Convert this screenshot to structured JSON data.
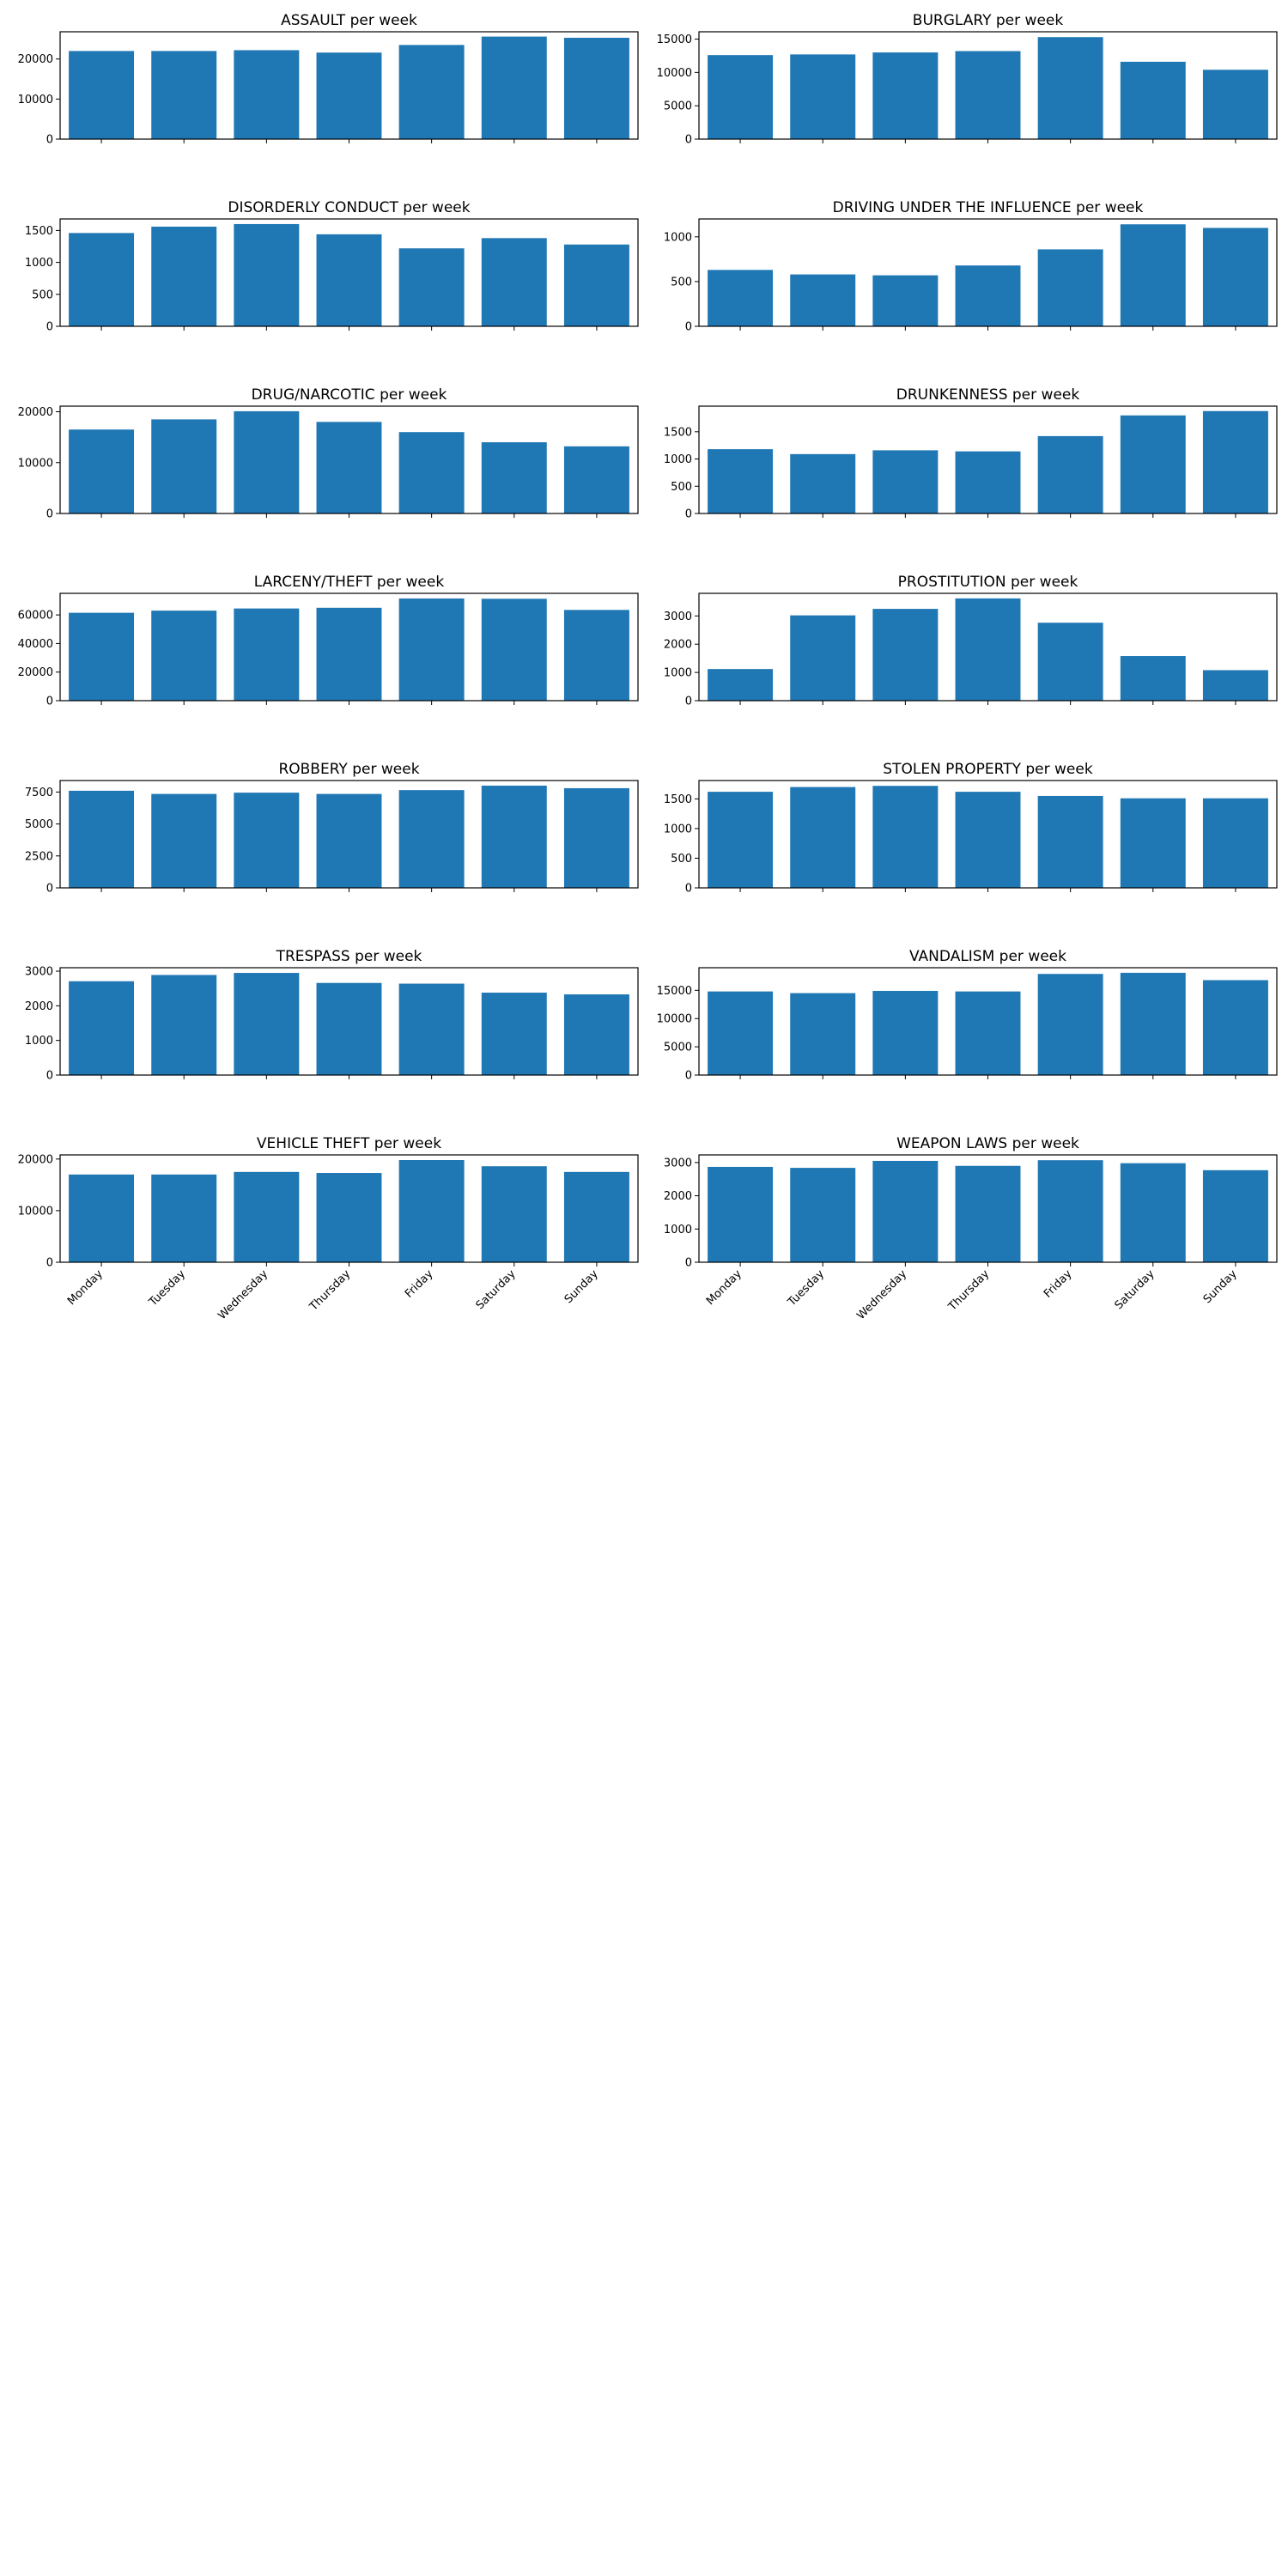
{
  "chart_data": [
    {
      "type": "bar",
      "title": "ASSAULT per week",
      "categories": [
        "Monday",
        "Tuesday",
        "Wednesday",
        "Thursday",
        "Friday",
        "Saturday",
        "Sunday"
      ],
      "values": [
        22000,
        22000,
        22200,
        21600,
        23500,
        25600,
        25300
      ],
      "ylim": [
        0,
        26800
      ],
      "yticks": [
        0,
        10000,
        20000
      ],
      "show_xticklabels": false
    },
    {
      "type": "bar",
      "title": "BURGLARY per week",
      "categories": [
        "Monday",
        "Tuesday",
        "Wednesday",
        "Thursday",
        "Friday",
        "Saturday",
        "Sunday"
      ],
      "values": [
        12600,
        12700,
        13000,
        13200,
        15300,
        11600,
        10400
      ],
      "ylim": [
        0,
        16100
      ],
      "yticks": [
        0,
        5000,
        10000,
        15000
      ],
      "show_xticklabels": false
    },
    {
      "type": "bar",
      "title": "DISORDERLY CONDUCT per week",
      "categories": [
        "Monday",
        "Tuesday",
        "Wednesday",
        "Thursday",
        "Friday",
        "Saturday",
        "Sunday"
      ],
      "values": [
        1460,
        1560,
        1600,
        1440,
        1220,
        1380,
        1280
      ],
      "ylim": [
        0,
        1680
      ],
      "yticks": [
        0,
        500,
        1000,
        1500
      ],
      "show_xticklabels": false
    },
    {
      "type": "bar",
      "title": "DRIVING UNDER THE INFLUENCE per week",
      "categories": [
        "Monday",
        "Tuesday",
        "Wednesday",
        "Thursday",
        "Friday",
        "Saturday",
        "Sunday"
      ],
      "values": [
        630,
        580,
        570,
        680,
        860,
        1140,
        1100
      ],
      "ylim": [
        0,
        1200
      ],
      "yticks": [
        0,
        500,
        1000
      ],
      "show_xticklabels": false
    },
    {
      "type": "bar",
      "title": "DRUG/NARCOTIC per week",
      "categories": [
        "Monday",
        "Tuesday",
        "Wednesday",
        "Thursday",
        "Friday",
        "Saturday",
        "Sunday"
      ],
      "values": [
        16500,
        18500,
        20100,
        18000,
        16000,
        14000,
        13200
      ],
      "ylim": [
        0,
        21100
      ],
      "yticks": [
        0,
        10000,
        20000
      ],
      "show_xticklabels": false
    },
    {
      "type": "bar",
      "title": "DRUNKENNESS per week",
      "categories": [
        "Monday",
        "Tuesday",
        "Wednesday",
        "Thursday",
        "Friday",
        "Saturday",
        "Sunday"
      ],
      "values": [
        1180,
        1090,
        1160,
        1140,
        1420,
        1800,
        1880
      ],
      "ylim": [
        0,
        1970
      ],
      "yticks": [
        0,
        500,
        1000,
        1500
      ],
      "show_xticklabels": false
    },
    {
      "type": "bar",
      "title": "LARCENY/THEFT per week",
      "categories": [
        "Monday",
        "Tuesday",
        "Wednesday",
        "Thursday",
        "Friday",
        "Saturday",
        "Sunday"
      ],
      "values": [
        61500,
        63000,
        64500,
        65000,
        71500,
        71300,
        63500
      ],
      "ylim": [
        0,
        75100
      ],
      "yticks": [
        0,
        20000,
        40000,
        60000
      ],
      "show_xticklabels": false
    },
    {
      "type": "bar",
      "title": "PROSTITUTION per week",
      "categories": [
        "Monday",
        "Tuesday",
        "Wednesday",
        "Thursday",
        "Friday",
        "Saturday",
        "Sunday"
      ],
      "values": [
        1120,
        3020,
        3250,
        3620,
        2760,
        1580,
        1080
      ],
      "ylim": [
        0,
        3800
      ],
      "yticks": [
        0,
        1000,
        2000,
        3000
      ],
      "show_xticklabels": false
    },
    {
      "type": "bar",
      "title": "ROBBERY per week",
      "categories": [
        "Monday",
        "Tuesday",
        "Wednesday",
        "Thursday",
        "Friday",
        "Saturday",
        "Sunday"
      ],
      "values": [
        7600,
        7350,
        7450,
        7350,
        7650,
        8000,
        7800
      ],
      "ylim": [
        0,
        8400
      ],
      "yticks": [
        0,
        2500,
        5000,
        7500
      ],
      "show_xticklabels": false
    },
    {
      "type": "bar",
      "title": "STOLEN PROPERTY per week",
      "categories": [
        "Monday",
        "Tuesday",
        "Wednesday",
        "Thursday",
        "Friday",
        "Saturday",
        "Sunday"
      ],
      "values": [
        1620,
        1700,
        1720,
        1620,
        1550,
        1510,
        1510
      ],
      "ylim": [
        0,
        1810
      ],
      "yticks": [
        0,
        500,
        1000,
        1500
      ],
      "show_xticklabels": false
    },
    {
      "type": "bar",
      "title": "TRESPASS per week",
      "categories": [
        "Monday",
        "Tuesday",
        "Wednesday",
        "Thursday",
        "Friday",
        "Saturday",
        "Sunday"
      ],
      "values": [
        2710,
        2890,
        2950,
        2660,
        2640,
        2380,
        2330
      ],
      "ylim": [
        0,
        3100
      ],
      "yticks": [
        0,
        1000,
        2000,
        3000
      ],
      "show_xticklabels": false
    },
    {
      "type": "bar",
      "title": "VANDALISM per week",
      "categories": [
        "Monday",
        "Tuesday",
        "Wednesday",
        "Thursday",
        "Friday",
        "Saturday",
        "Sunday"
      ],
      "values": [
        14800,
        14500,
        14900,
        14800,
        17900,
        18100,
        16800
      ],
      "ylim": [
        0,
        19000
      ],
      "yticks": [
        0,
        5000,
        10000,
        15000
      ],
      "show_xticklabels": false
    },
    {
      "type": "bar",
      "title": "VEHICLE THEFT per week",
      "categories": [
        "Monday",
        "Tuesday",
        "Wednesday",
        "Thursday",
        "Friday",
        "Saturday",
        "Sunday"
      ],
      "values": [
        17000,
        17000,
        17500,
        17300,
        19800,
        18600,
        17500
      ],
      "ylim": [
        0,
        20800
      ],
      "yticks": [
        0,
        10000,
        20000
      ],
      "show_xticklabels": true
    },
    {
      "type": "bar",
      "title": "WEAPON LAWS per week",
      "categories": [
        "Monday",
        "Tuesday",
        "Wednesday",
        "Thursday",
        "Friday",
        "Saturday",
        "Sunday"
      ],
      "values": [
        2870,
        2840,
        3050,
        2900,
        3070,
        2980,
        2770
      ],
      "ylim": [
        0,
        3230
      ],
      "yticks": [
        0,
        1000,
        2000,
        3000
      ],
      "show_xticklabels": true
    }
  ]
}
